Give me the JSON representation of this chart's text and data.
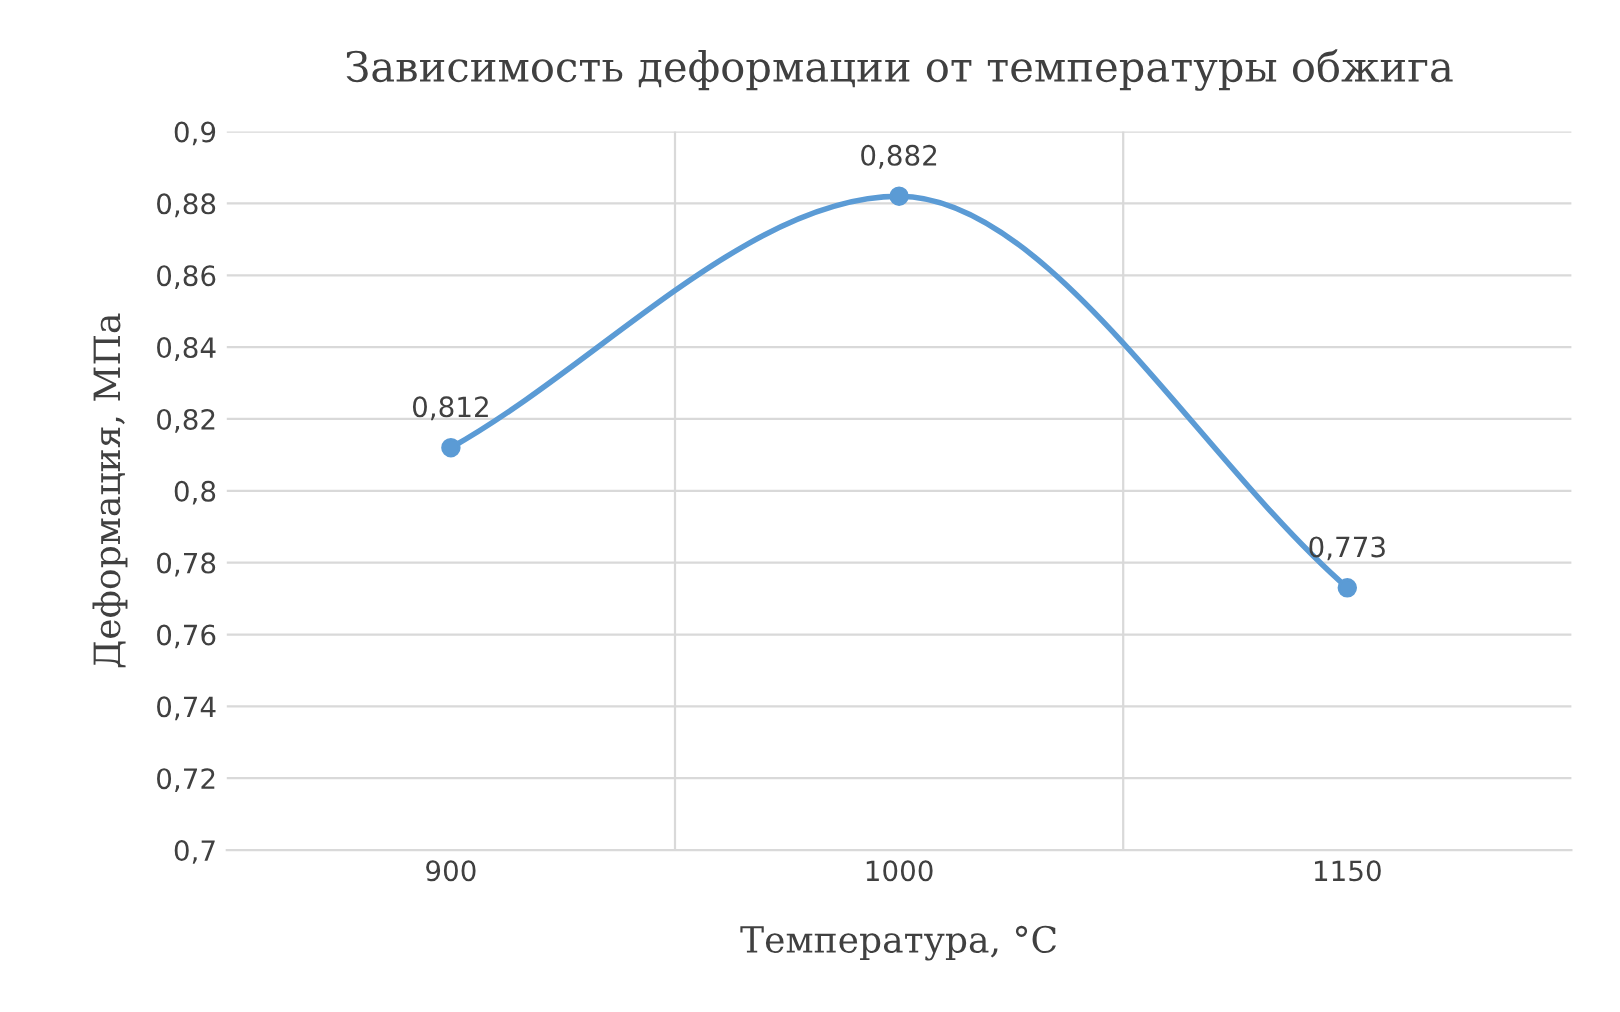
{
  "chart_data": {
    "type": "line",
    "title": "Зависимость деформации от температуры обжига",
    "xlabel": "Температура, °С",
    "ylabel": "Деформация, МПа",
    "categories": [
      "900",
      "1000",
      "1150"
    ],
    "series": [
      {
        "color": "#5b9bd5",
        "values": [
          0.812,
          0.882,
          0.773
        ],
        "value_labels": [
          "0,812",
          "0,882",
          "0,773"
        ]
      }
    ],
    "ylim": [
      0.7,
      0.9
    ],
    "yticks": [
      {
        "value": 0.7,
        "label": "0,7"
      },
      {
        "value": 0.72,
        "label": "0,72"
      },
      {
        "value": 0.74,
        "label": "0,74"
      },
      {
        "value": 0.76,
        "label": "0,76"
      },
      {
        "value": 0.78,
        "label": "0,78"
      },
      {
        "value": 0.8,
        "label": "0,8"
      },
      {
        "value": 0.82,
        "label": "0,82"
      },
      {
        "value": 0.84,
        "label": "0,84"
      },
      {
        "value": 0.86,
        "label": "0,86"
      },
      {
        "value": 0.88,
        "label": "0,88"
      },
      {
        "value": 0.9,
        "label": "0,9"
      }
    ],
    "grid": true,
    "marker": "circle",
    "line_style": "solid",
    "legend": false
  }
}
